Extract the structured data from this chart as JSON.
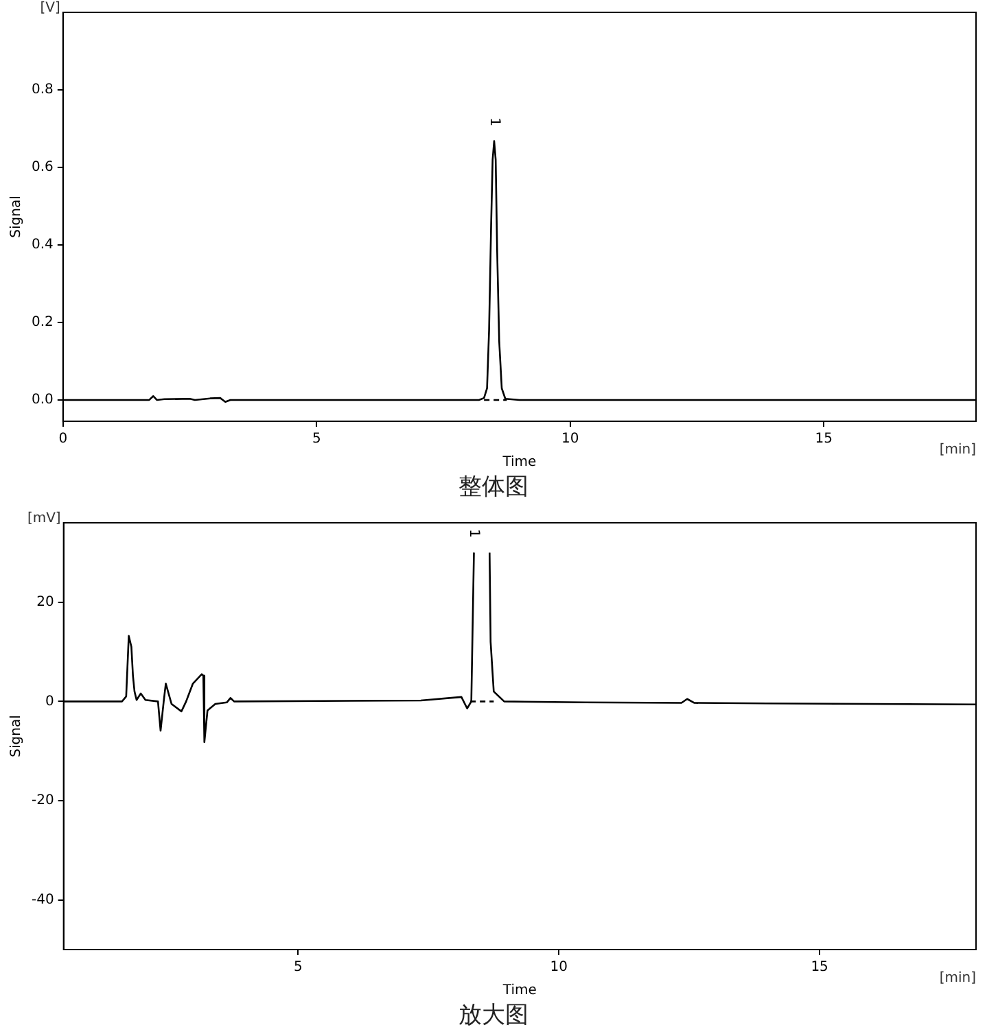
{
  "chart_data": [
    {
      "type": "line",
      "title": "整体图",
      "xlabel": "Time",
      "ylabel": "Signal",
      "xlim": [
        0,
        18
      ],
      "ylim": [
        -0.055,
        1.0
      ],
      "xticks": [
        0,
        5,
        10,
        15
      ],
      "yticks": [
        {
          "value": 0,
          "label": "0.0"
        },
        {
          "value": 0.2,
          "label": "0.2"
        },
        {
          "value": 0.4,
          "label": "0.4"
        },
        {
          "value": 0.6,
          "label": "0.6"
        },
        {
          "value": 0.8,
          "label": "0.8"
        }
      ],
      "grid": false,
      "legend": false,
      "marker": "none",
      "series": [
        {
          "color": "#000000",
          "line_style": "solid",
          "x": [
            0,
            1.7,
            1.78,
            1.85,
            2.0,
            2.5,
            2.6,
            2.9,
            3.1,
            3.15,
            3.2,
            3.3,
            8.2,
            8.3,
            8.36,
            8.4,
            8.44,
            8.47,
            8.5,
            8.53,
            8.56,
            8.6,
            8.65,
            8.72,
            9.0,
            18
          ],
          "values": [
            0,
            0,
            0.01,
            0,
            0.002,
            0.003,
            0,
            0.004,
            0.005,
            0,
            -0.005,
            0,
            0,
            0.005,
            0.03,
            0.18,
            0.45,
            0.62,
            0.668,
            0.62,
            0.38,
            0.15,
            0.03,
            0.003,
            0,
            0
          ]
        },
        {
          "color": "#000000",
          "line_style": "dashed",
          "x": [
            8.3,
            8.75
          ],
          "values": [
            0,
            0
          ]
        }
      ],
      "annotations": [
        "[V]",
        "[min]",
        "1"
      ]
    },
    {
      "type": "line",
      "title": "放大图",
      "xlabel": "Time",
      "ylabel": "Signal",
      "xlim": [
        0.5,
        18
      ],
      "ylim": [
        -50,
        36
      ],
      "xticks": [
        5,
        10,
        15
      ],
      "yticks": [
        -40,
        -20,
        0,
        20
      ],
      "grid": false,
      "legend": false,
      "marker": "none",
      "series": [
        {
          "color": "#000000",
          "line_style": "solid",
          "x": [
            0.5,
            1.62,
            1.7,
            1.75,
            1.8,
            1.83,
            1.86,
            1.9,
            1.98,
            2.07,
            2.31,
            2.36,
            2.42,
            2.46,
            2.57,
            2.76,
            2.85,
            2.98,
            3.15,
            3.18,
            3.2,
            3.26,
            3.41,
            3.63,
            3.7,
            3.77,
            7.35,
            8.13,
            8.24,
            8.32,
            8.37,
            8.39,
            8.65,
            8.67,
            8.69,
            8.75,
            8.95,
            10.5,
            12.35,
            12.46,
            12.6,
            14,
            16,
            18
          ],
          "values": [
            0,
            0,
            1,
            13.2,
            11,
            5.2,
            2,
            0.3,
            1.6,
            0.3,
            0,
            -5.9,
            0,
            3.6,
            -0.5,
            -2,
            0,
            3.6,
            5.5,
            5.2,
            -8.2,
            -1.8,
            -0.5,
            -0.2,
            0.7,
            0,
            0.2,
            0.9,
            -1.4,
            0,
            30,
            null,
            null,
            30,
            12,
            2,
            0,
            -0.2,
            -0.3,
            0.5,
            -0.3,
            -0.4,
            -0.5,
            -0.6
          ]
        },
        {
          "color": "#000000",
          "line_style": "dashed",
          "x": [
            8.3,
            8.75
          ],
          "values": [
            0,
            0
          ]
        }
      ],
      "annotations": [
        "[mV]",
        "[min]",
        "1"
      ]
    }
  ]
}
